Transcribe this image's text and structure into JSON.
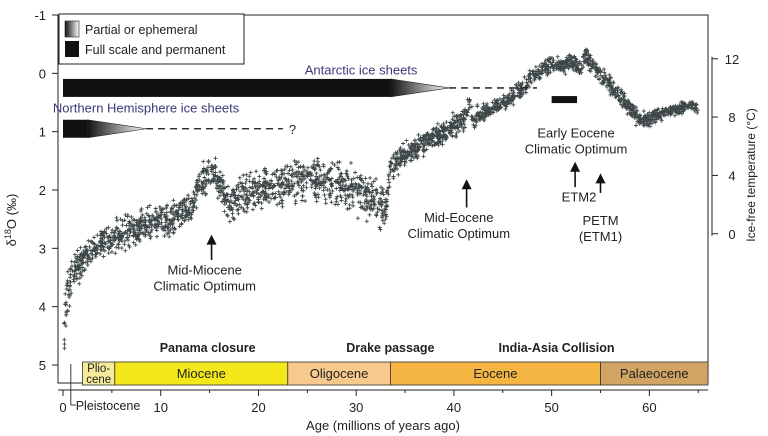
{
  "chart_data": {
    "type": "scatter",
    "xlabel": "Age (millions of years ago)",
    "ylabel": "δ18O (‰)",
    "ylabel_right": "Ice-free temperature (°C)",
    "xlim": [
      0,
      66
    ],
    "ylim": [
      -1,
      5
    ],
    "y_inverted": true,
    "x_ticks": [
      0,
      10,
      20,
      30,
      40,
      50,
      60
    ],
    "y_ticks": [
      -1,
      0,
      1,
      2,
      3,
      4,
      5
    ],
    "y_right_ticks": [
      0,
      4,
      8,
      12
    ],
    "y_right_ticks_d18O": [
      2.75,
      1.75,
      0.75,
      -0.25
    ],
    "marker": "+",
    "marker_color": "#3d4747",
    "series": [
      {
        "x": [
          0.1,
          0.3,
          0.6,
          0.9,
          1.2,
          1.6,
          2.0,
          2.5,
          3.0,
          3.5,
          4.0,
          5.0,
          6.0,
          7.0,
          8.0,
          9.0,
          10.0,
          11.0,
          12.0,
          13.0,
          13.5,
          14.0,
          14.5,
          15.0,
          15.5,
          16.0,
          16.5,
          17.0,
          18.0,
          19.0,
          20.0,
          21.0,
          22.0,
          23.0,
          24.0,
          25.0,
          26.0,
          27.0,
          28.0,
          29.0,
          30.0,
          31.0,
          32.0,
          33.0,
          33.5,
          34.0,
          35.0,
          36.0,
          37.0,
          38.0,
          39.0,
          40.0,
          41.0,
          41.5,
          42.0,
          43.0,
          44.0,
          45.0,
          46.0,
          47.0,
          48.0,
          49.0,
          50.0,
          51.0,
          52.0,
          53.0,
          53.5,
          54.0,
          55.0,
          56.0,
          57.0,
          58.0,
          59.0,
          60.0,
          61.0,
          62.0,
          63.0,
          64.0,
          65.0
        ],
        "y": [
          4.5,
          4.0,
          3.7,
          3.5,
          3.4,
          3.3,
          3.2,
          3.1,
          3.0,
          2.95,
          2.9,
          2.8,
          2.75,
          2.7,
          2.65,
          2.55,
          2.5,
          2.5,
          2.4,
          2.3,
          2.1,
          1.9,
          1.8,
          1.7,
          1.75,
          1.9,
          2.05,
          2.2,
          2.1,
          2.05,
          2.0,
          1.95,
          1.9,
          1.85,
          1.8,
          1.85,
          1.8,
          1.85,
          1.9,
          1.95,
          2.0,
          2.1,
          2.15,
          2.3,
          1.6,
          1.55,
          1.4,
          1.3,
          1.2,
          1.1,
          1.0,
          0.9,
          0.8,
          0.5,
          0.75,
          0.7,
          0.6,
          0.5,
          0.4,
          0.25,
          0.05,
          -0.05,
          -0.15,
          -0.1,
          -0.2,
          -0.05,
          -0.35,
          -0.15,
          0.05,
          0.2,
          0.4,
          0.6,
          0.8,
          0.8,
          0.7,
          0.65,
          0.6,
          0.55,
          0.6
        ],
        "spread": [
          0.5,
          0.5,
          0.45,
          0.4,
          0.35,
          0.3,
          0.3,
          0.3,
          0.3,
          0.3,
          0.3,
          0.3,
          0.3,
          0.3,
          0.3,
          0.3,
          0.3,
          0.3,
          0.3,
          0.3,
          0.3,
          0.3,
          0.3,
          0.3,
          0.3,
          0.3,
          0.3,
          0.35,
          0.35,
          0.35,
          0.35,
          0.35,
          0.35,
          0.35,
          0.4,
          0.4,
          0.4,
          0.4,
          0.4,
          0.4,
          0.4,
          0.4,
          0.4,
          0.4,
          0.2,
          0.2,
          0.2,
          0.2,
          0.2,
          0.2,
          0.2,
          0.2,
          0.2,
          0.2,
          0.2,
          0.15,
          0.15,
          0.15,
          0.15,
          0.15,
          0.15,
          0.15,
          0.15,
          0.15,
          0.15,
          0.15,
          0.15,
          0.15,
          0.15,
          0.15,
          0.15,
          0.15,
          0.15,
          0.15,
          0.15,
          0.1,
          0.1,
          0.1,
          0.1
        ]
      }
    ],
    "legend": {
      "placement": "top-left",
      "items": [
        "Partial or ephemeral",
        "Full scale and permanent"
      ]
    },
    "ice_sheets": [
      {
        "label": "Antarctic ice sheets",
        "solid_from": 0,
        "solid_to": 33.5,
        "fade_to": 39.5,
        "dashed_to": 48.5,
        "y": 0.25,
        "label_x": 30.5,
        "label_y": -0.05
      },
      {
        "label": "Northern Hemisphere ice sheets",
        "solid_from": 0,
        "solid_to": 2.5,
        "fade_to": 8.5,
        "dashed_to": 22.5,
        "y": 0.95,
        "label_x": 8.5,
        "label_y": 0.6,
        "end_mark": "?"
      }
    ],
    "eeco_bar": {
      "x_from": 50,
      "x_to": 52.6,
      "y": 0.45
    },
    "annotations": [
      {
        "lines": [
          "Mid-Miocene",
          "Climatic Optimum"
        ],
        "text_x": 14.5,
        "text_y": 3.45,
        "arrow_x": 15.2,
        "arrow_from": 3.2,
        "arrow_to": 2.8
      },
      {
        "lines": [
          "Mid-Eocene",
          "Climatic Optimum"
        ],
        "text_x": 40.5,
        "text_y": 2.55,
        "arrow_x": 41.3,
        "arrow_from": 2.3,
        "arrow_to": 1.85
      },
      {
        "lines": [
          "Early Eocene",
          "Climatic Optimum"
        ],
        "text_x": 52.5,
        "text_y": 1.1,
        "arrow_x": null
      },
      {
        "lines": [
          "ETM2"
        ],
        "text_x": 52.8,
        "text_y": 2.2,
        "arrow_x": 52.4,
        "arrow_from": 1.95,
        "arrow_to": 1.55
      },
      {
        "lines": [
          "PETM",
          "(ETM1)"
        ],
        "text_x": 55.0,
        "text_y": 2.6,
        "arrow_x": 55.0,
        "arrow_from": 2.05,
        "arrow_to": 1.75
      }
    ],
    "events": [
      {
        "label": "Panama closure",
        "x": 14.8
      },
      {
        "label": "Drake passage",
        "x": 33.5
      },
      {
        "label": "India-Asia Collision",
        "x": 50.5
      }
    ],
    "epochs": [
      {
        "label": "Plio-\ncene",
        "from": 2.0,
        "to": 5.3,
        "color": "#f6eb9a"
      },
      {
        "label": "Miocene",
        "from": 5.3,
        "to": 23.0,
        "color": "#f5e81a"
      },
      {
        "label": "Oligocene",
        "from": 23.0,
        "to": 33.5,
        "color": "#f8c98d"
      },
      {
        "label": "Eocene",
        "from": 33.5,
        "to": 55.0,
        "color": "#f5b542"
      },
      {
        "label": "Palaeocene",
        "from": 55.0,
        "to": 66.0,
        "color": "#d1a463"
      }
    ],
    "pleistocene_label": "Pleistocene"
  }
}
